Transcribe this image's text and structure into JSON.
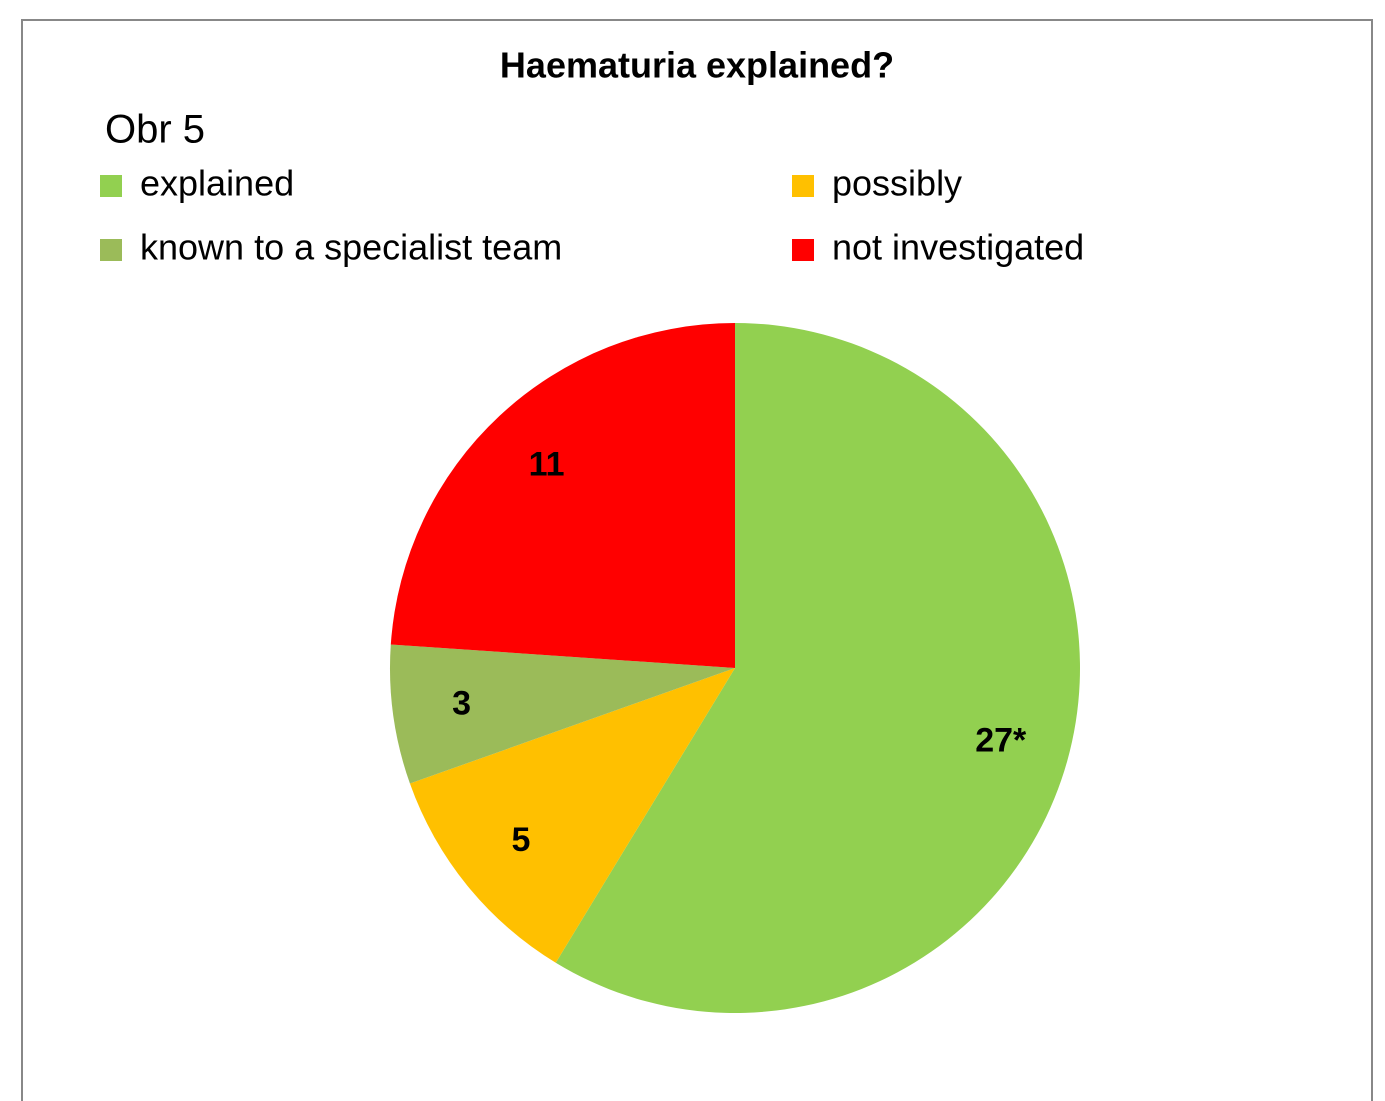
{
  "chart_data": {
    "type": "pie",
    "title": "Haematuria explained?",
    "annotation": "Obr 5",
    "categories": [
      "explained",
      "possibly",
      "known to a specialist team",
      "not investigated"
    ],
    "values": [
      27,
      5,
      3,
      11
    ],
    "value_labels": [
      "27*",
      "5",
      "3",
      "11"
    ],
    "colors": [
      "#92d050",
      "#ffc000",
      "#9bbb59",
      "#ff0000"
    ]
  }
}
